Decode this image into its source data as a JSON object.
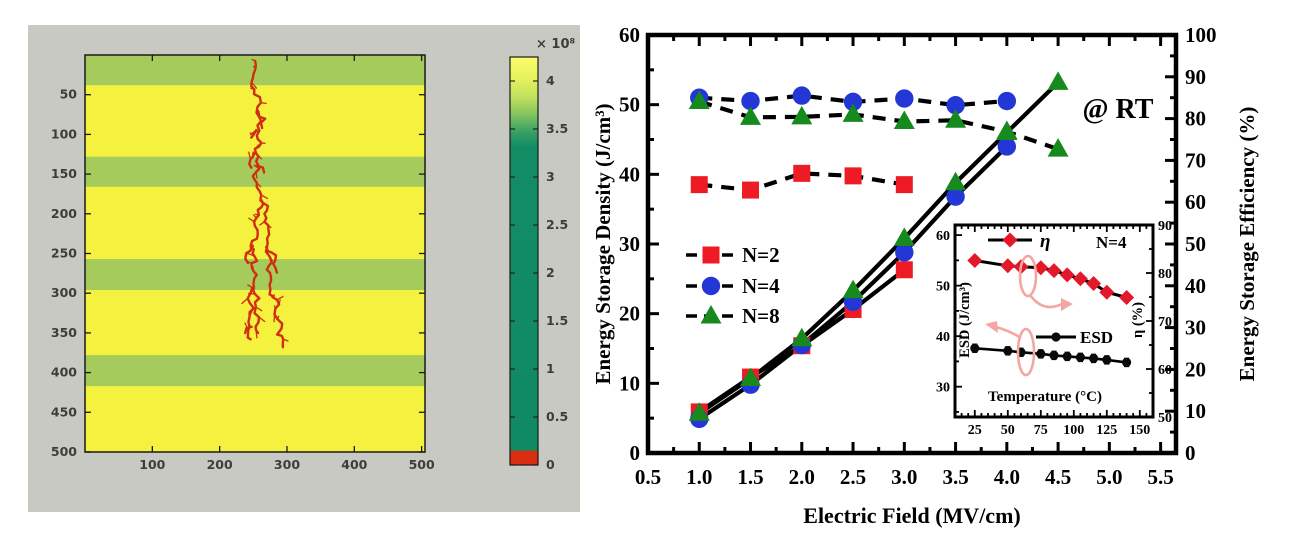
{
  "figure": {
    "background": "#ffffff"
  },
  "chart_data": [
    {
      "id": "breakdown-simulation",
      "type": "heatmap",
      "description": "Simulated dielectric breakdown tree in a multilayer dielectric (MATLAB-style figure)",
      "x_range": [
        0,
        505
      ],
      "y_range": [
        0,
        500
      ],
      "x_ticks": [
        100,
        200,
        300,
        400,
        500
      ],
      "y_ticks": [
        50,
        100,
        150,
        200,
        250,
        300,
        350,
        400,
        450,
        500
      ],
      "colors": {
        "figure_background": "#c9c9c3",
        "matrix_yellow": "#f4f23f",
        "layer_green": "#a4cb5b",
        "breakdown_red": "#cf2f10",
        "axis": "#1a1a1a",
        "tick_text": "#3d3d3d"
      },
      "green_bands": [
        [
          0,
          38
        ],
        [
          128,
          166
        ],
        [
          257,
          296
        ],
        [
          378,
          417
        ]
      ],
      "tree_spines": [
        [
          [
            251,
            8
          ],
          [
            255,
            20
          ],
          [
            248,
            34
          ],
          [
            254,
            48
          ],
          [
            261,
            60
          ],
          [
            256,
            72
          ],
          [
            263,
            84
          ],
          [
            256,
            96
          ],
          [
            260,
            110
          ],
          [
            253,
            124
          ],
          [
            258,
            138
          ],
          [
            252,
            152
          ],
          [
            256,
            166
          ],
          [
            264,
            182
          ],
          [
            259,
            196
          ],
          [
            251,
            210
          ],
          [
            256,
            226
          ],
          [
            249,
            240
          ],
          [
            254,
            254
          ],
          [
            249,
            268
          ],
          [
            253,
            282
          ],
          [
            251,
            294
          ]
        ],
        [
          [
            264,
            182
          ],
          [
            271,
            196
          ],
          [
            267,
            210
          ],
          [
            273,
            226
          ],
          [
            269,
            242
          ],
          [
            276,
            256
          ],
          [
            271,
            270
          ],
          [
            278,
            284
          ],
          [
            274,
            296
          ],
          [
            280,
            304
          ]
        ],
        [
          [
            251,
            294
          ],
          [
            244,
            306
          ],
          [
            248,
            318
          ],
          [
            242,
            330
          ],
          [
            247,
            342
          ],
          [
            243,
            352
          ],
          [
            246,
            358
          ]
        ],
        [
          [
            251,
            294
          ],
          [
            257,
            306
          ],
          [
            252,
            318
          ],
          [
            258,
            330
          ],
          [
            254,
            342
          ],
          [
            257,
            350
          ]
        ],
        [
          [
            280,
            304
          ],
          [
            288,
            314
          ],
          [
            283,
            326
          ],
          [
            291,
            338
          ],
          [
            288,
            350
          ],
          [
            296,
            358
          ],
          [
            294,
            368
          ]
        ],
        [
          [
            256,
            72
          ],
          [
            266,
            80
          ],
          [
            263,
            92
          ]
        ],
        [
          [
            253,
            124
          ],
          [
            243,
            132
          ],
          [
            247,
            142
          ]
        ],
        [
          [
            249,
            240
          ],
          [
            238,
            250
          ],
          [
            242,
            262
          ]
        ],
        [
          [
            269,
            242
          ],
          [
            282,
            252
          ],
          [
            278,
            264
          ],
          [
            285,
            274
          ]
        ],
        [
          [
            247,
            342
          ],
          [
            238,
            350
          ]
        ],
        [
          [
            256,
            96
          ],
          [
            247,
            104
          ]
        ],
        [
          [
            258,
            138
          ],
          [
            266,
            148
          ]
        ]
      ],
      "colorbar": {
        "exponent_label": "× 10⁸",
        "max_value": 4.25,
        "ticks": [
          4,
          3.5,
          3,
          2.5,
          2,
          1.5,
          1,
          0.5,
          0
        ],
        "red_segment": [
          0,
          0.15
        ],
        "red_color": "#d92c10",
        "gradient": [
          [
            "0%",
            "#fafc6a"
          ],
          [
            "5%",
            "#e9f25f"
          ],
          [
            "10%",
            "#bfdf5b"
          ],
          [
            "14%",
            "#84c55f"
          ],
          [
            "18%",
            "#3da263"
          ],
          [
            "22%",
            "#128c64"
          ],
          [
            "100%",
            "#108a63"
          ]
        ]
      }
    },
    {
      "id": "energy-storage-chart",
      "type": "line",
      "annotation": "@ RT",
      "x_axis": {
        "label": "Electric Field (MV/cm)",
        "range": [
          0.5,
          5.65
        ],
        "major_ticks": [
          0.5,
          1.0,
          1.5,
          2.0,
          2.5,
          3.0,
          3.5,
          4.0,
          4.5,
          5.0,
          5.5
        ],
        "minor_step": 0.25
      },
      "y_left": {
        "label": "Energy Storage Density (J/cm³)",
        "range": [
          0,
          60
        ],
        "major_ticks": [
          0,
          10,
          20,
          30,
          40,
          50,
          60
        ],
        "minor_step": 5
      },
      "y_right": {
        "label": "Energy Storage Efficiency (%)",
        "range": [
          0,
          100
        ],
        "major_ticks": [
          0,
          10,
          20,
          30,
          40,
          50,
          60,
          70,
          80,
          90,
          100
        ],
        "minor_step": 5
      },
      "series": [
        {
          "name": "N=2",
          "color": "#ee1b24",
          "marker": "square",
          "esd": {
            "x": [
              1.0,
              1.5,
              2.0,
              2.5,
              3.0
            ],
            "y": [
              5.9,
              10.9,
              15.4,
              20.6,
              26.3
            ]
          },
          "efficiency": {
            "x": [
              1.0,
              1.5,
              2.0,
              2.5,
              3.0
            ],
            "y": [
              64.2,
              62.9,
              66.9,
              66.3,
              64.2
            ]
          }
        },
        {
          "name": "N=4",
          "color": "#2337d6",
          "marker": "circle",
          "esd": {
            "x": [
              1.0,
              1.5,
              2.0,
              2.5,
              3.0,
              3.5,
              4.0
            ],
            "y": [
              4.9,
              9.8,
              15.5,
              21.7,
              28.8,
              36.8,
              44.0
            ]
          },
          "efficiency": {
            "x": [
              1.0,
              1.5,
              2.0,
              2.5,
              3.0,
              3.5,
              4.0
            ],
            "y": [
              85.0,
              84.2,
              85.5,
              84.0,
              84.8,
              83.2,
              84.2
            ]
          }
        },
        {
          "name": "N=8",
          "color": "#178a1d",
          "marker": "triangle",
          "esd": {
            "x": [
              1.0,
              1.5,
              2.0,
              2.5,
              3.0,
              3.5,
              4.0,
              4.5
            ],
            "y": [
              5.7,
              10.7,
              16.4,
              23.3,
              30.8,
              38.8,
              46.0,
              53.2
            ]
          },
          "efficiency": {
            "x": [
              1.0,
              1.5,
              2.0,
              2.5,
              3.0,
              3.5,
              4.0,
              4.5
            ],
            "y": [
              84.1,
              80.3,
              80.4,
              81.0,
              79.3,
              79.6,
              76.9,
              72.7
            ]
          }
        }
      ],
      "legend": [
        {
          "label": "N=2"
        },
        {
          "label": "N=4"
        },
        {
          "label": "N=8"
        }
      ],
      "inset": {
        "note": "N=4",
        "x_axis": {
          "label": "Temperature (°C)",
          "range": [
            10,
            160
          ],
          "major_ticks": [
            25,
            50,
            75,
            100,
            125,
            150
          ],
          "minor_step": 5
        },
        "y_left": {
          "label": "ESD (J/cm³)",
          "range": [
            24,
            62
          ],
          "major_ticks": [
            30,
            40,
            50,
            60
          ],
          "minor_step": 5
        },
        "y_right": {
          "label": "η (%)",
          "range": [
            50,
            90
          ],
          "major_ticks": [
            50,
            60,
            70,
            80,
            90
          ],
          "minor_step": 5
        },
        "temperature": [
          25,
          50,
          60,
          75,
          85,
          95,
          105,
          115,
          125,
          140
        ],
        "eta_percent": [
          82.6,
          81.5,
          81.3,
          81.1,
          80.5,
          79.6,
          78.8,
          77.8,
          76.0,
          74.9
        ],
        "esd": [
          37.6,
          37.1,
          36.8,
          36.5,
          36.2,
          36.0,
          35.8,
          35.6,
          35.3,
          34.8
        ],
        "esd_error": 0.8,
        "eta_color": "#e3192a",
        "esd_color": "#0a0a0a",
        "legend": [
          {
            "label": "η"
          },
          {
            "label": "ESD"
          }
        ],
        "annotation_color": "#f3a6a3"
      }
    }
  ]
}
